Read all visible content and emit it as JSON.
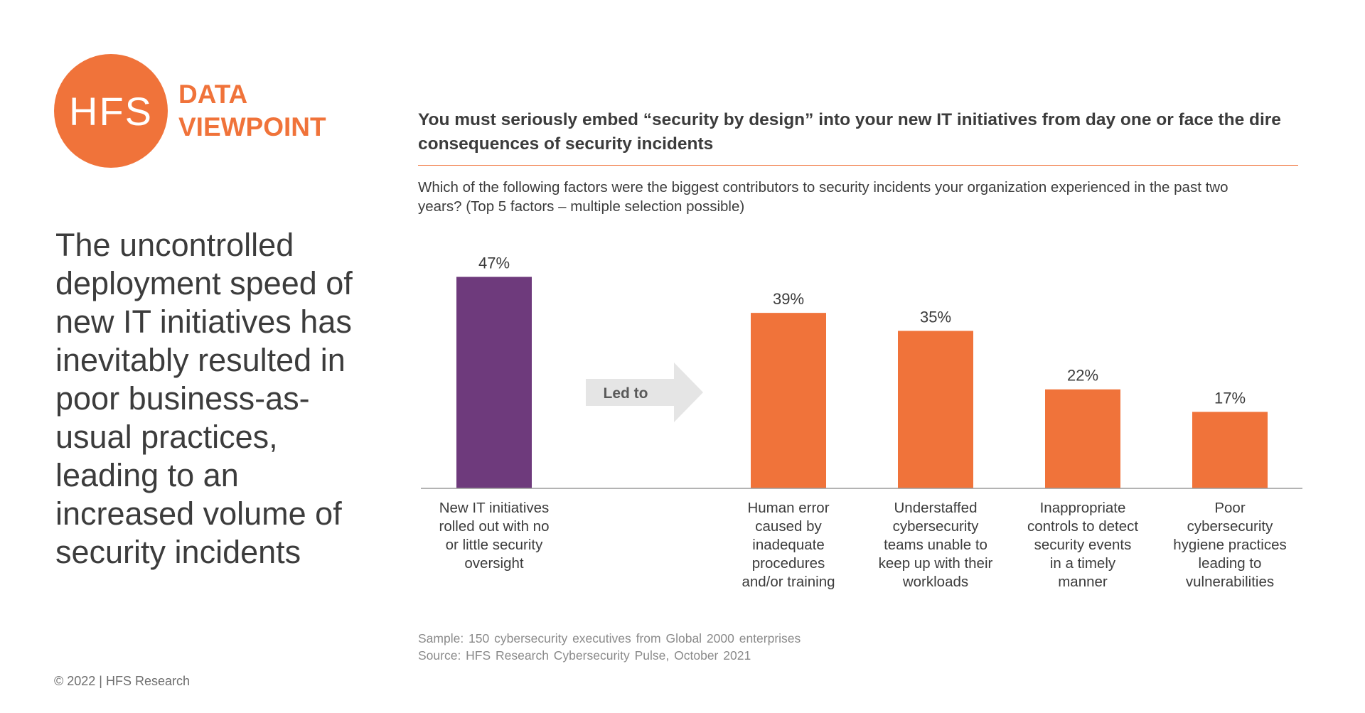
{
  "logo": {
    "mark": "HFS",
    "line1": "DATA",
    "line2": "VIEWPOINT"
  },
  "headline": "The uncontrolled deployment speed of new IT initiatives has inevitably resulted in poor business-as-usual practices, leading to an increased volume of security incidents",
  "copyright": "© 2022 | HFS Research",
  "colors": {
    "accent_orange": "#f0733a",
    "cause_purple": "#6e3a7c",
    "arrow_grey": "#e5e5e5"
  },
  "arrow": {
    "label": "Led to",
    "icon": "right-arrow-icon"
  },
  "footnotes": {
    "sample": "Sample: 150 cybersecurity executives from Global 2000 enterprises",
    "source": "Source: HFS Research Cybersecurity Pulse, October 2021"
  },
  "chart_data": {
    "type": "bar",
    "title": "You must seriously embed “security by design” into your new IT initiatives from day one or face the dire consequences of security incidents",
    "subtitle": "Which of the following factors were the biggest contributors to security incidents your organization experienced in the past two years? (Top 5 factors – multiple selection possible)",
    "categories": [
      [
        "New IT initiatives",
        "rolled out with no",
        "or little security",
        "oversight"
      ],
      [
        "Human error",
        "caused by",
        "inadequate",
        "procedures",
        "and/or training"
      ],
      [
        "Understaffed",
        "cybersecurity",
        "teams unable to",
        "keep up with their",
        "workloads"
      ],
      [
        "Inappropriate",
        "controls to detect",
        "security events",
        "in a timely",
        "manner"
      ],
      [
        "Poor",
        "cybersecurity",
        "hygiene practices",
        "leading to",
        "vulnerabilities"
      ]
    ],
    "values": [
      47,
      39,
      35,
      22,
      17
    ],
    "value_labels": [
      "47%",
      "39%",
      "35%",
      "22%",
      "17%"
    ],
    "bar_colors": [
      "#6e3a7c",
      "#f0733a",
      "#f0733a",
      "#f0733a",
      "#f0733a"
    ],
    "unit": "%",
    "ylim": [
      0,
      50
    ],
    "grid": false,
    "xlabel": "",
    "ylabel": ""
  }
}
